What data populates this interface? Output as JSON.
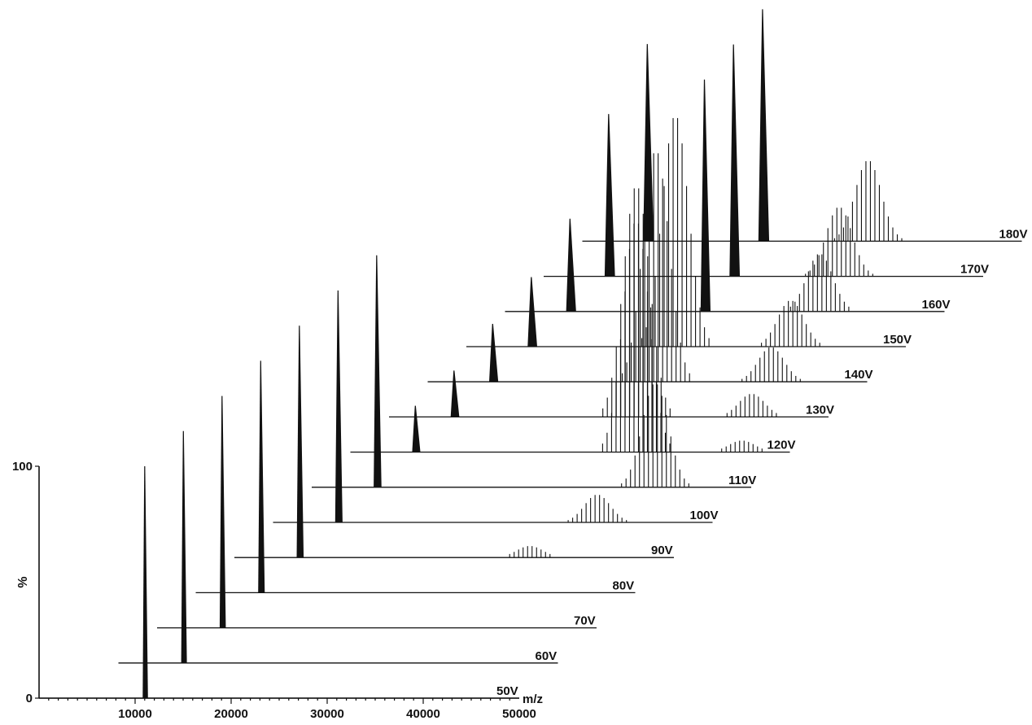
{
  "chart_data": {
    "type": "line",
    "xlabel": "m/z",
    "ylabel": "%",
    "xlim": [
      0,
      50000
    ],
    "ylim": [
      0,
      100
    ],
    "x_ticks": [
      10000,
      20000,
      30000,
      40000,
      50000
    ],
    "y_ticks": [
      0,
      100
    ],
    "x_tick_labels": [
      "10000",
      "20000",
      "30000",
      "40000",
      "50000"
    ],
    "y_tick_labels": [
      "0",
      "100"
    ],
    "grid": false,
    "legend": "none",
    "series": [
      {
        "name": "50V",
        "peaks": [
          {
            "mz": 11000,
            "intensity": 100
          }
        ]
      },
      {
        "name": "60V",
        "peaks": [
          {
            "mz": 11000,
            "intensity": 100
          }
        ]
      },
      {
        "name": "70V",
        "peaks": [
          {
            "mz": 11000,
            "intensity": 100
          }
        ]
      },
      {
        "name": "80V",
        "peaks": [
          {
            "mz": 11000,
            "intensity": 100
          }
        ]
      },
      {
        "name": "90V",
        "peaks": [
          {
            "mz": 11000,
            "intensity": 100
          },
          {
            "mz": 35000,
            "intensity": 5
          }
        ]
      },
      {
        "name": "100V",
        "peaks": [
          {
            "mz": 11000,
            "intensity": 100
          },
          {
            "mz": 38000,
            "intensity": 12
          }
        ]
      },
      {
        "name": "110V",
        "peaks": [
          {
            "mz": 11000,
            "intensity": 100
          },
          {
            "mz": 40000,
            "intensity": 45
          }
        ]
      },
      {
        "name": "120V",
        "peaks": [
          {
            "mz": 11000,
            "intensity": 20
          },
          {
            "mz": 34000,
            "intensity": 100
          },
          {
            "mz": 45000,
            "intensity": 5
          }
        ]
      },
      {
        "name": "130V",
        "peaks": [
          {
            "mz": 11000,
            "intensity": 20
          },
          {
            "mz": 30000,
            "intensity": 100
          },
          {
            "mz": 42000,
            "intensity": 10
          }
        ]
      },
      {
        "name": "140V",
        "peaks": [
          {
            "mz": 11000,
            "intensity": 25
          },
          {
            "mz": 28000,
            "intensity": 100
          },
          {
            "mz": 40000,
            "intensity": 15
          }
        ]
      },
      {
        "name": "150V",
        "peaks": [
          {
            "mz": 11000,
            "intensity": 30
          },
          {
            "mz": 26000,
            "intensity": 100
          },
          {
            "mz": 38000,
            "intensity": 20
          }
        ]
      },
      {
        "name": "160V",
        "peaks": [
          {
            "mz": 11000,
            "intensity": 40
          },
          {
            "mz": 25000,
            "intensity": 100
          },
          {
            "mz": 37000,
            "intensity": 25
          }
        ]
      },
      {
        "name": "170V",
        "peaks": [
          {
            "mz": 11000,
            "intensity": 70
          },
          {
            "mz": 24000,
            "intensity": 100
          },
          {
            "mz": 35000,
            "intensity": 30
          }
        ]
      },
      {
        "name": "180V",
        "peaks": [
          {
            "mz": 11000,
            "intensity": 85
          },
          {
            "mz": 23000,
            "intensity": 100
          },
          {
            "mz": 34000,
            "intensity": 35
          }
        ]
      }
    ]
  }
}
